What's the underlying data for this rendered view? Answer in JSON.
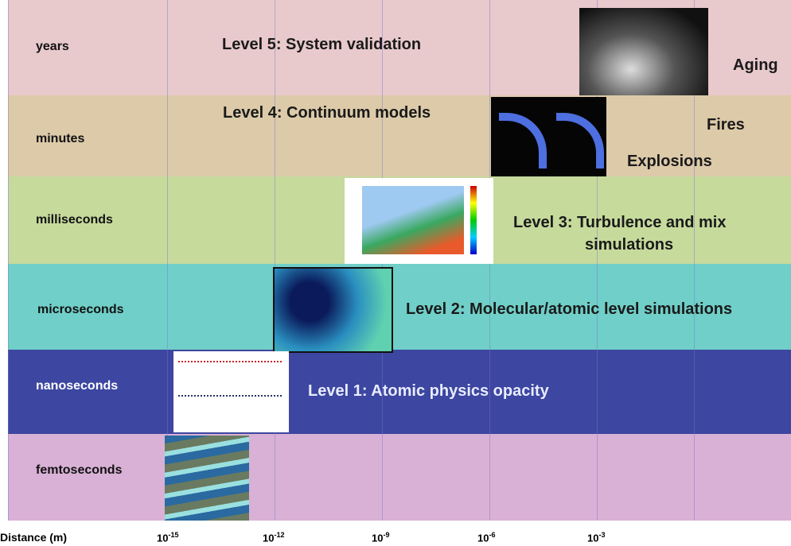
{
  "rows": [
    {
      "label": "years",
      "texts": [
        "Level 5: System validation",
        "Aging"
      ]
    },
    {
      "label": "minutes",
      "texts": [
        "Level 4: Continuum models",
        "Fires",
        "Explosions"
      ]
    },
    {
      "label": "milliseconds",
      "texts": [
        "Level 3: Turbulence and mix",
        "simulations"
      ]
    },
    {
      "label": "microseconds",
      "texts": [
        "Level 2: Molecular/atomic level simulations"
      ]
    },
    {
      "label": "nanoseconds",
      "texts": [
        "Level 1: Atomic physics opacity"
      ]
    },
    {
      "label": "femtoseconds",
      "texts": []
    }
  ],
  "axis": {
    "title": "Distance (m)",
    "ticks": [
      {
        "base": "10",
        "exponent": "-15"
      },
      {
        "base": "10",
        "exponent": "-12"
      },
      {
        "base": "10",
        "exponent": "-9"
      },
      {
        "base": "10",
        "exponent": "-6"
      },
      {
        "base": "10",
        "exponent": "-3"
      }
    ]
  }
}
